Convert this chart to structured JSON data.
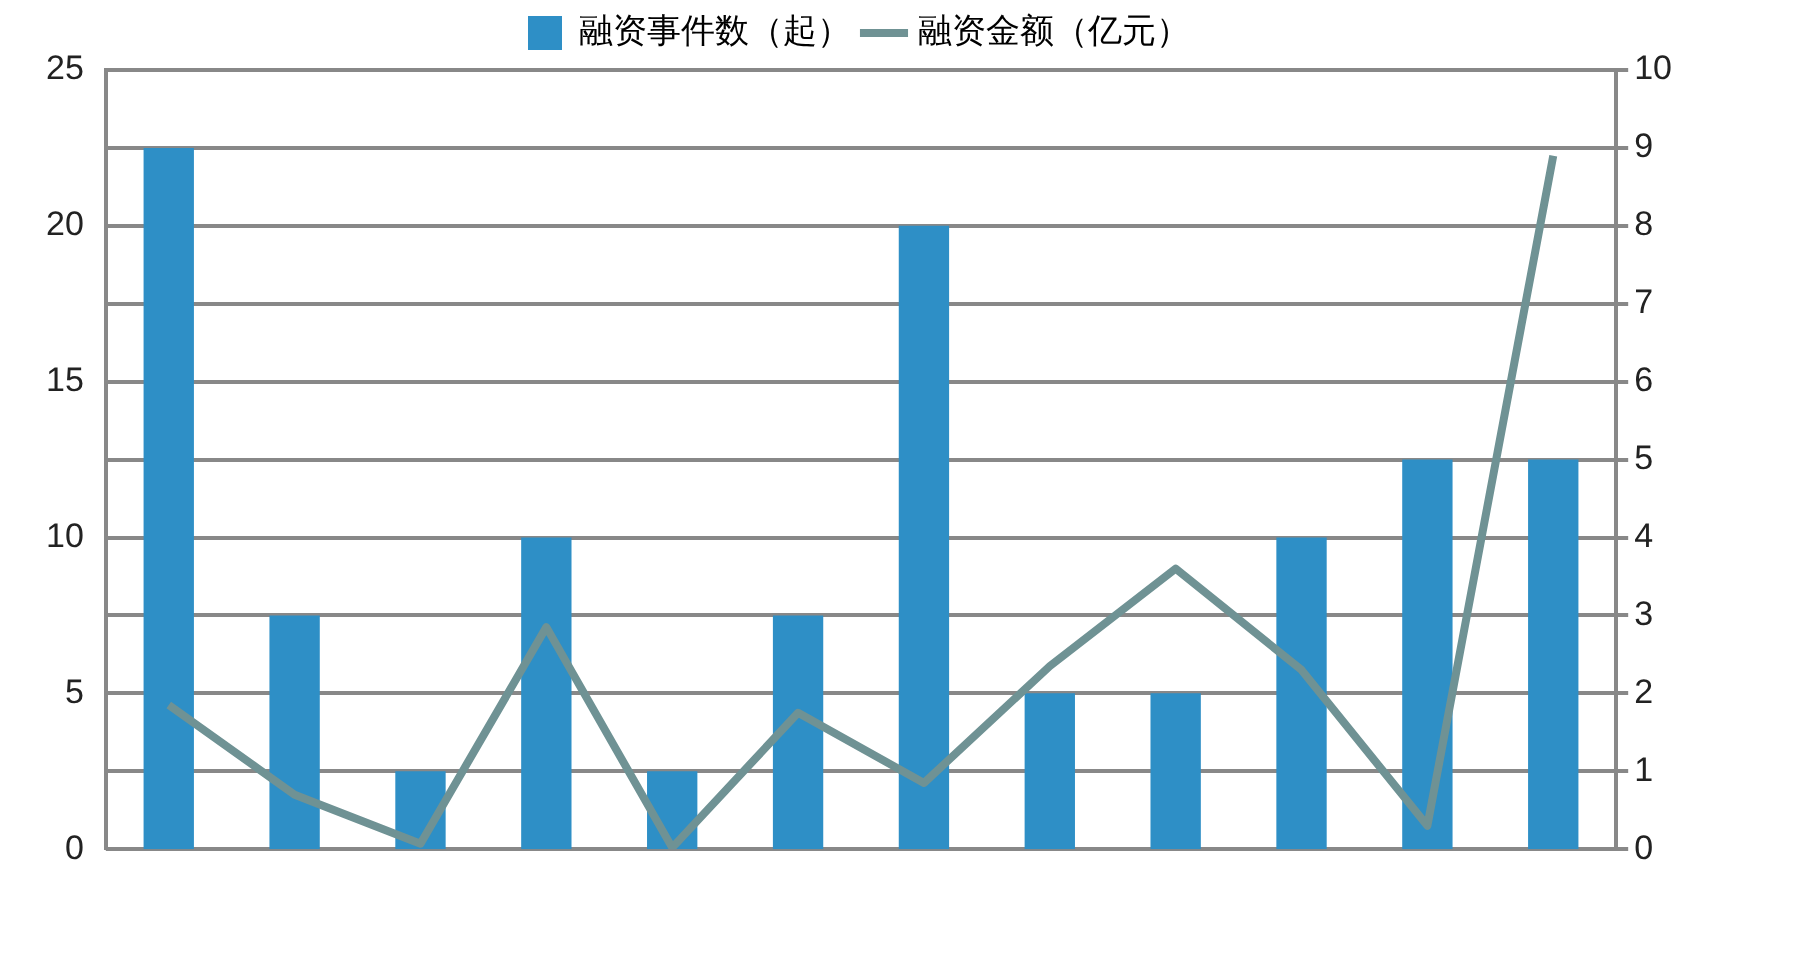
{
  "chart_data": {
    "type": "bar",
    "categories": [
      null,
      null,
      null,
      null,
      null,
      null,
      null,
      null,
      null,
      null,
      null,
      null
    ],
    "series": [
      {
        "name": "融资事件数（起）",
        "color": "#2e8fc6",
        "values": [
          22.5,
          7.5,
          2.5,
          10,
          2.5,
          7.5,
          20,
          5,
          5,
          10,
          12.5,
          12.5
        ]
      },
      {
        "name": "融资金额（亿元）",
        "type": "line",
        "axis": "y2",
        "color": "#6f9294",
        "marker": "none",
        "values": [
          1.85,
          0.7,
          0.07,
          2.85,
          0.02,
          1.75,
          0.85,
          2.35,
          3.6,
          2.3,
          0.3,
          8.9
        ]
      }
    ],
    "ylim": [
      0,
      25
    ],
    "yticks": [
      0,
      5,
      10,
      15,
      20,
      25
    ],
    "y2lim": [
      0,
      10
    ],
    "y2ticks": [
      0,
      1,
      2,
      3,
      4,
      5,
      6,
      7,
      8,
      9,
      10
    ],
    "grid": "y",
    "legend": "top"
  }
}
